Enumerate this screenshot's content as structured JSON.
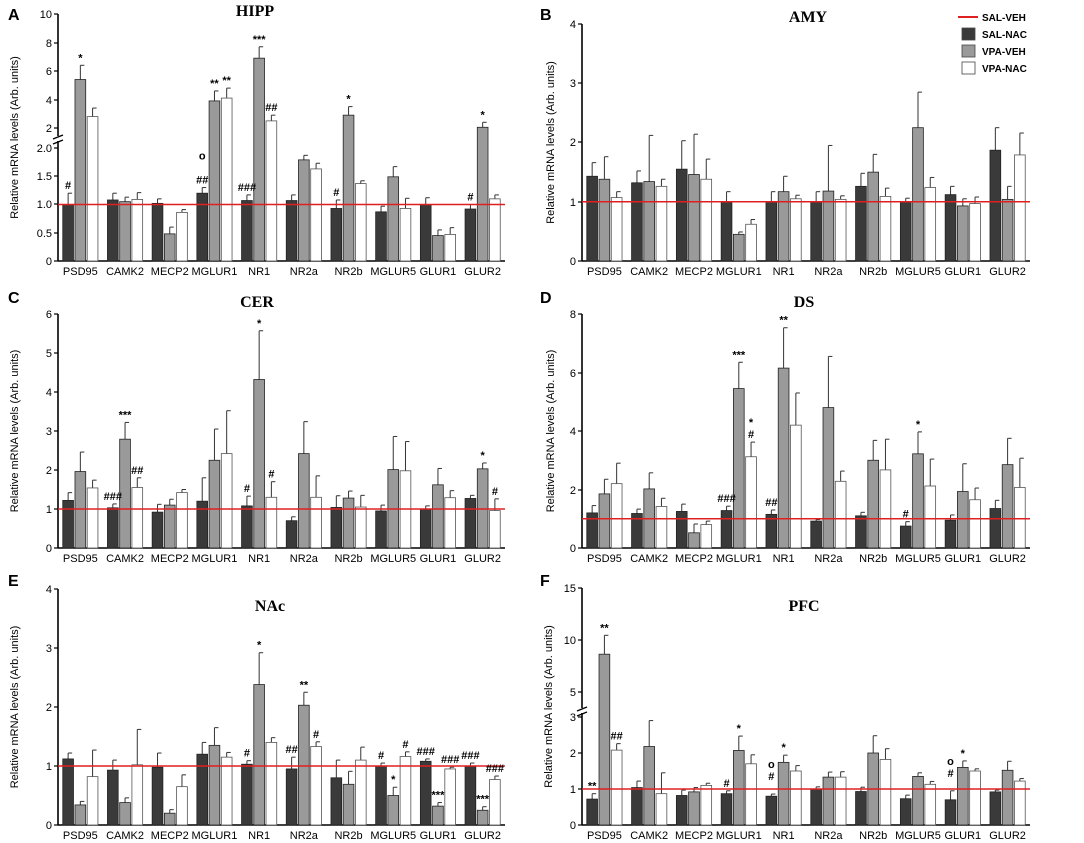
{
  "figure": {
    "categories": [
      "PSD95",
      "CAMK2",
      "MECP2",
      "MGLUR1",
      "NR1",
      "NR2a",
      "NR2b",
      "MGLUR5",
      "GLUR1",
      "GLUR2"
    ],
    "ylabel": "Relative mRNA levels (Arb. units)",
    "colors": {
      "SAL-NAC": "#3a3a3a",
      "VPA-VEH": "#9a9a9a",
      "VPA-NAC": "#ffffff",
      "reference": "#e02020"
    }
  },
  "legend": {
    "title": "SAL-VEH",
    "items": [
      "SAL-NAC",
      "VPA-VEH",
      "VPA-NAC"
    ]
  },
  "chart_data": [
    {
      "letter": "A",
      "title": "HIPP",
      "type": "bar",
      "reference_line": 1,
      "broken_axis": true,
      "yticks": [
        "0",
        "0.5",
        "1.0",
        "1.5",
        "2.0",
        "2",
        "4",
        "6",
        "8",
        "10"
      ],
      "categories": [
        "PSD95",
        "CAMK2",
        "MECP2",
        "MGLUR1",
        "NR1",
        "NR2a",
        "NR2b",
        "MGLUR5",
        "GLUR1",
        "GLUR2"
      ],
      "series": [
        {
          "name": "SAL-NAC",
          "values": [
            1.0,
            1.08,
            1.02,
            1.2,
            1.07,
            1.07,
            0.93,
            0.87,
            1.0,
            0.92
          ],
          "errors": [
            0.2,
            0.12,
            0.08,
            0.1,
            0.1,
            0.1,
            0.15,
            0.1,
            0.12,
            0.08
          ]
        },
        {
          "name": "VPA-VEH",
          "values": [
            5.4,
            1.05,
            0.48,
            3.9,
            6.9,
            1.79,
            2.9,
            1.49,
            0.45,
            2.05
          ],
          "errors": [
            1.0,
            0.08,
            0.12,
            0.7,
            0.8,
            0.08,
            0.6,
            0.18,
            0.1,
            0.35
          ]
        },
        {
          "name": "VPA-NAC",
          "values": [
            2.8,
            1.09,
            0.86,
            4.1,
            2.5,
            1.63,
            1.37,
            0.93,
            0.47,
            1.1
          ],
          "errors": [
            0.6,
            0.12,
            0.05,
            0.7,
            0.4,
            0.1,
            0.05,
            0.18,
            0.12,
            0.07
          ]
        }
      ],
      "annotations": [
        "*",
        "#",
        "**",
        "o",
        "##",
        "**",
        "***",
        "###",
        "##",
        "#",
        "*",
        "#",
        "*"
      ]
    },
    {
      "letter": "B",
      "title": "AMY",
      "type": "bar",
      "reference_line": 1,
      "ylim": [
        0,
        4
      ],
      "yticks": [
        "0",
        "1",
        "2",
        "3",
        "4"
      ],
      "categories": [
        "PSD95",
        "CAMK2",
        "MECP2",
        "MGLUR1",
        "NR1",
        "NR2a",
        "NR2b",
        "MGLUR5",
        "GLUR1",
        "GLUR2"
      ],
      "series": [
        {
          "name": "SAL-NAC",
          "values": [
            1.43,
            1.32,
            1.55,
            1.0,
            1.0,
            1.0,
            1.26,
            1.0,
            1.12,
            1.87
          ],
          "errors": [
            0.23,
            0.2,
            0.48,
            0.17,
            0.17,
            0.17,
            0.22,
            0.06,
            0.14,
            0.38
          ]
        },
        {
          "name": "VPA-VEH",
          "values": [
            1.38,
            1.34,
            1.46,
            0.45,
            1.17,
            1.18,
            1.5,
            2.25,
            0.93,
            1.04
          ],
          "errors": [
            0.38,
            0.78,
            0.68,
            0.04,
            0.26,
            0.77,
            0.3,
            0.6,
            0.12,
            0.22
          ]
        },
        {
          "name": "VPA-NAC",
          "values": [
            1.07,
            1.26,
            1.38,
            0.62,
            1.05,
            1.04,
            1.09,
            1.24,
            0.97,
            1.79
          ],
          "errors": [
            0.1,
            0.12,
            0.34,
            0.08,
            0.06,
            0.06,
            0.14,
            0.17,
            0.11,
            0.37
          ]
        }
      ],
      "annotations": []
    },
    {
      "letter": "C",
      "title": "CER",
      "type": "bar",
      "reference_line": 1,
      "ylim": [
        0,
        6
      ],
      "yticks": [
        "0",
        "1",
        "2",
        "3",
        "4",
        "5",
        "6"
      ],
      "categories": [
        "PSD95",
        "CAMK2",
        "MECP2",
        "MGLUR1",
        "NR1",
        "NR2a",
        "NR2b",
        "MGLUR5",
        "GLUR1",
        "GLUR2"
      ],
      "series": [
        {
          "name": "SAL-NAC",
          "values": [
            1.22,
            1.03,
            0.92,
            1.2,
            1.08,
            0.7,
            1.04,
            0.95,
            1.0,
            1.27
          ],
          "errors": [
            0.2,
            0.1,
            0.2,
            0.6,
            0.25,
            0.1,
            0.3,
            0.15,
            0.08,
            0.08
          ]
        },
        {
          "name": "VPA-VEH",
          "values": [
            1.96,
            2.79,
            1.1,
            2.25,
            4.32,
            2.42,
            1.28,
            2.01,
            1.62,
            2.03
          ],
          "errors": [
            0.5,
            0.43,
            0.15,
            0.8,
            1.25,
            0.82,
            0.18,
            0.85,
            0.42,
            0.15
          ]
        },
        {
          "name": "VPA-NAC",
          "values": [
            1.54,
            1.55,
            1.42,
            2.42,
            1.3,
            1.3,
            1.05,
            1.98,
            1.29,
            0.96
          ],
          "errors": [
            0.2,
            0.25,
            0.08,
            1.1,
            0.4,
            0.55,
            0.3,
            0.75,
            0.18,
            0.3
          ]
        }
      ],
      "annotations": [
        "###",
        "***",
        "##",
        "#",
        "*",
        "#",
        "*",
        "#"
      ]
    },
    {
      "letter": "D",
      "title": "DS",
      "type": "bar",
      "reference_line": 1,
      "ylim": [
        0,
        8
      ],
      "yticks": [
        "0",
        "2",
        "4",
        "6",
        "8"
      ],
      "categories": [
        "PSD95",
        "CAMK2",
        "MECP2",
        "MGLUR1",
        "NR1",
        "NR2a",
        "NR2b",
        "MGLUR5",
        "GLUR1",
        "GLUR2"
      ],
      "series": [
        {
          "name": "SAL-NAC",
          "values": [
            1.2,
            1.18,
            1.25,
            1.28,
            1.15,
            0.92,
            1.1,
            0.75,
            0.95,
            1.35
          ],
          "errors": [
            0.25,
            0.15,
            0.25,
            0.15,
            0.15,
            0.05,
            0.12,
            0.15,
            0.18,
            0.28
          ]
        },
        {
          "name": "VPA-VEH",
          "values": [
            1.85,
            2.02,
            0.52,
            5.45,
            6.15,
            4.8,
            3.0,
            3.22,
            1.93,
            2.85
          ],
          "errors": [
            0.5,
            0.55,
            0.3,
            0.9,
            1.38,
            1.75,
            0.68,
            0.75,
            0.95,
            0.9
          ]
        },
        {
          "name": "VPA-NAC",
          "values": [
            2.2,
            1.42,
            0.8,
            3.12,
            4.2,
            2.28,
            2.67,
            2.12,
            1.65,
            2.07
          ],
          "errors": [
            0.7,
            0.28,
            0.12,
            0.5,
            1.1,
            0.35,
            1.05,
            0.92,
            0.4,
            1.0
          ]
        }
      ],
      "annotations": [
        "###",
        "***",
        "*",
        "#",
        "##",
        "**",
        "#",
        "*"
      ]
    },
    {
      "letter": "E",
      "title": "NAc",
      "type": "bar",
      "reference_line": 1,
      "ylim": [
        0,
        4
      ],
      "yticks": [
        "0",
        "1",
        "2",
        "3",
        "4"
      ],
      "categories": [
        "PSD95",
        "CAMK2",
        "MECP2",
        "MGLUR1",
        "NR1",
        "NR2a",
        "NR2b",
        "MGLUR5",
        "GLUR1",
        "GLUR2"
      ],
      "series": [
        {
          "name": "SAL-NAC",
          "values": [
            1.12,
            0.93,
            0.98,
            1.2,
            1.03,
            0.95,
            0.8,
            1.0,
            1.08,
            1.0
          ],
          "errors": [
            0.1,
            0.17,
            0.24,
            0.2,
            0.06,
            0.2,
            0.3,
            0.05,
            0.04,
            0.05
          ]
        },
        {
          "name": "VPA-VEH",
          "values": [
            0.34,
            0.38,
            0.2,
            1.35,
            2.38,
            2.03,
            0.69,
            0.5,
            0.32,
            0.25
          ],
          "errors": [
            0.06,
            0.08,
            0.06,
            0.3,
            0.54,
            0.22,
            0.22,
            0.14,
            0.06,
            0.06
          ]
        },
        {
          "name": "VPA-NAC",
          "values": [
            0.82,
            1.02,
            0.65,
            1.15,
            1.4,
            1.33,
            1.1,
            1.16,
            0.95,
            0.77
          ],
          "errors": [
            0.45,
            0.6,
            0.2,
            0.08,
            0.08,
            0.08,
            0.22,
            0.08,
            0.03,
            0.06
          ]
        }
      ],
      "annotations": [
        "#",
        "*",
        "##",
        "**",
        "#",
        "#",
        "#",
        "*",
        "###",
        "***",
        "###",
        "###",
        "***",
        "###"
      ]
    },
    {
      "letter": "F",
      "title": "PFC",
      "type": "bar",
      "reference_line": 1,
      "broken_axis": true,
      "yticks": [
        "0",
        "1",
        "2",
        "3",
        "5",
        "10",
        "15"
      ],
      "categories": [
        "PSD95",
        "CAMK2",
        "MECP2",
        "MGLUR1",
        "NR1",
        "NR2a",
        "NR2b",
        "MGLUR5",
        "GLUR1",
        "GLUR2"
      ],
      "series": [
        {
          "name": "SAL-NAC",
          "values": [
            0.72,
            1.04,
            0.82,
            0.87,
            0.8,
            1.0,
            0.93,
            0.73,
            0.7,
            0.92
          ],
          "errors": [
            0.15,
            0.18,
            0.15,
            0.08,
            0.06,
            0.06,
            0.12,
            0.1,
            0.25,
            0.05
          ]
        },
        {
          "name": "VPA-VEH",
          "values": [
            8.6,
            2.18,
            0.92,
            2.07,
            1.74,
            1.33,
            2.0,
            1.35,
            1.6,
            1.52
          ],
          "errors": [
            1.8,
            0.72,
            0.12,
            0.4,
            0.2,
            0.14,
            0.48,
            0.1,
            0.18,
            0.25
          ]
        },
        {
          "name": "VPA-NAC",
          "values": [
            2.08,
            0.87,
            1.1,
            1.7,
            1.5,
            1.33,
            1.82,
            1.13,
            1.5,
            1.22
          ],
          "errors": [
            0.18,
            0.58,
            0.06,
            0.25,
            0.15,
            0.15,
            0.3,
            0.08,
            0.06,
            0.07
          ]
        }
      ],
      "annotations": [
        "**",
        "**",
        "##",
        "#",
        "*",
        "o",
        "#",
        "*",
        "o",
        "#",
        "*"
      ]
    }
  ]
}
